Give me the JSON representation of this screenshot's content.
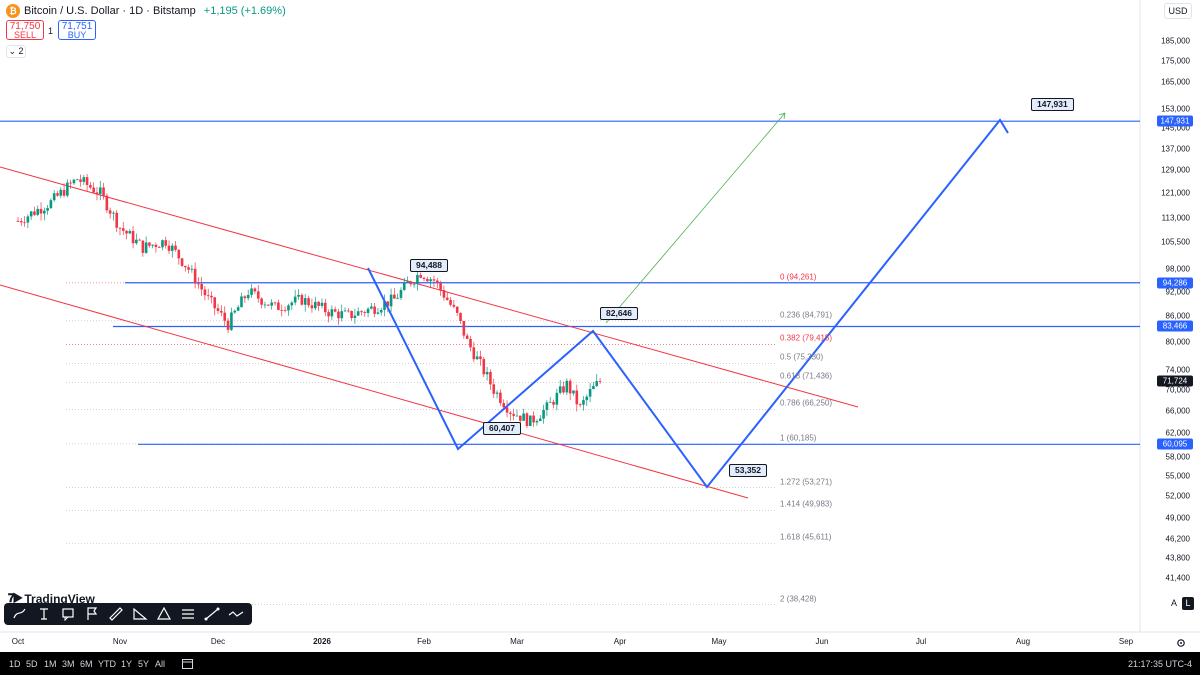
{
  "header": {
    "title": "Bitcoin / U.S. Dollar · 1D · Bitstamp",
    "change": "+1,195 (+1.69%)",
    "symbol_icon": "bitcoin-icon",
    "sell_price": "71,750",
    "sell_label": "SELL",
    "spread": "1",
    "buy_price": "71,751",
    "buy_label": "BUY",
    "indicator_toggle": "⌄ 2",
    "currency": "USD"
  },
  "chart_data": {
    "type": "candlestick",
    "symbol": "BTCUSD",
    "interval": "1D",
    "price_scale_ticks": [
      "185,000",
      "175,000",
      "165,000",
      "153,000",
      "145,000",
      "137,000",
      "129,000",
      "121,000",
      "113,000",
      "105,500",
      "98,000",
      "92,000",
      "86,000",
      "80,000",
      "74,000",
      "70,000",
      "66,000",
      "62,000",
      "58,000",
      "55,000",
      "52,000",
      "49,000",
      "46,200",
      "43,800",
      "41,400"
    ],
    "price_scale_values": [
      185000,
      175000,
      165000,
      153000,
      145000,
      137000,
      129000,
      121000,
      113000,
      105500,
      98000,
      92000,
      86000,
      80000,
      74000,
      70000,
      66000,
      62000,
      58000,
      55000,
      52000,
      49000,
      46200,
      43800,
      41400
    ],
    "time_axis_labels": [
      "Oct",
      "Nov",
      "Dec",
      "2026",
      "Feb",
      "Mar",
      "Apr",
      "May",
      "Jun",
      "Jul",
      "Aug",
      "Sep"
    ],
    "price_labels": [
      {
        "text": "147,931",
        "price": 147931,
        "style": "blue"
      },
      {
        "text": "94,286",
        "price": 94286,
        "style": "blue"
      },
      {
        "text": "83,466",
        "price": 83466,
        "style": "blue"
      },
      {
        "text": "71,724",
        "price": 71724,
        "style": "dark"
      },
      {
        "text": "60,095",
        "price": 60095,
        "style": "blue"
      }
    ],
    "fib_levels": [
      {
        "label": "0 (94,261)",
        "price": 94261,
        "red": true
      },
      {
        "label": "0.236 (84,791)",
        "price": 84791,
        "red": false
      },
      {
        "label": "0.382 (79,415)",
        "price": 79415,
        "red": true
      },
      {
        "label": "0.5 (75,330)",
        "price": 75330,
        "red": false
      },
      {
        "label": "0.618 (71,436)",
        "price": 71436,
        "red": false
      },
      {
        "label": "0.786 (66,250)",
        "price": 66250,
        "red": false
      },
      {
        "label": "1 (60,185)",
        "price": 60185,
        "red": false
      },
      {
        "label": "1.272 (53,271)",
        "price": 53271,
        "red": false
      },
      {
        "label": "1.414 (49,983)",
        "price": 49983,
        "red": false
      },
      {
        "label": "1.618 (45,611)",
        "price": 45611,
        "red": false
      },
      {
        "label": "2 (38,428)",
        "price": 38428,
        "red": false
      }
    ],
    "callouts": [
      "94,488",
      "82,646",
      "60,407",
      "53,352",
      "147,931"
    ],
    "horizontal_levels": [
      147931,
      94286,
      83466,
      60095
    ],
    "projected_path_prices": [
      94488,
      60407,
      82646,
      53352,
      147931
    ],
    "colors": {
      "up": "#089981",
      "down": "#f23645",
      "projection": "#2962ff",
      "channel": "#f23645",
      "target_arrow": "#4caf50"
    }
  },
  "toolbar": {
    "tools": [
      "brush-icon",
      "text-cursor-icon",
      "note-icon",
      "flag-icon",
      "ruler-icon",
      "measure-icon",
      "triangle-icon",
      "fib-retracement-icon",
      "trend-line-icon",
      "path-icon"
    ]
  },
  "branding": {
    "logo_text": "TradingView"
  },
  "scale_buttons": {
    "auto": "A",
    "log": "L"
  },
  "bottom": {
    "timeframes": [
      "1D",
      "5D",
      "1M",
      "3M",
      "6M",
      "YTD",
      "1Y",
      "5Y",
      "All"
    ],
    "clock": "21:17:35 UTC-4"
  }
}
